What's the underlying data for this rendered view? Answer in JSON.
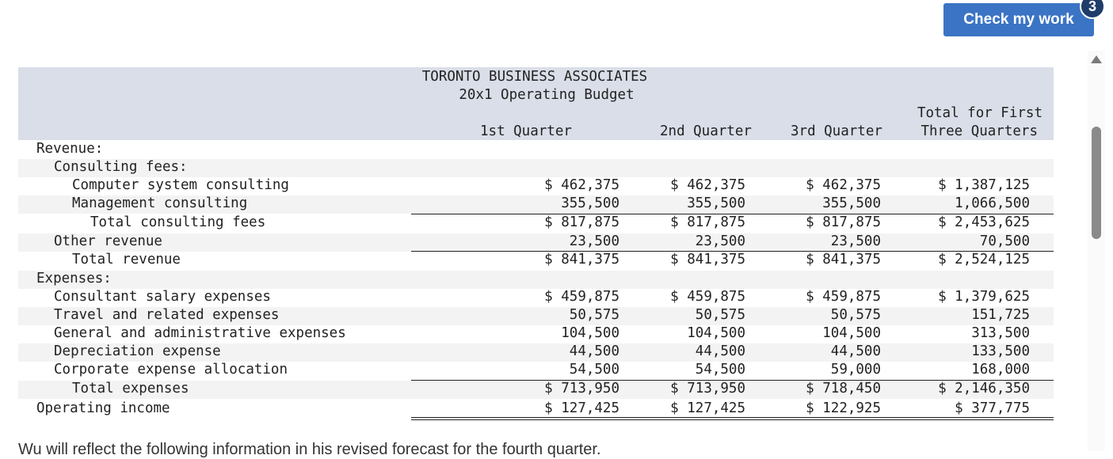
{
  "button": {
    "label": "Check my work",
    "badge": "3"
  },
  "budget": {
    "company": "TORONTO BUSINESS ASSOCIATES",
    "title": "20x1 Operating Budget",
    "columns": [
      "1st Quarter",
      "2nd Quarter",
      "3rd Quarter",
      "Total for First",
      "Three Quarters"
    ],
    "rows": [
      {
        "label": "Revenue:",
        "v": [
          "",
          "",
          "",
          ""
        ]
      },
      {
        "label": "Consulting fees:",
        "v": [
          "",
          "",
          "",
          ""
        ]
      },
      {
        "label": "Computer system consulting",
        "v": [
          "$ 462,375",
          "$ 462,375",
          "$ 462,375",
          "$ 1,387,125"
        ]
      },
      {
        "label": "Management consulting",
        "v": [
          "355,500",
          "355,500",
          "355,500",
          "1,066,500"
        ]
      },
      {
        "label": "Total consulting fees",
        "v": [
          "$ 817,875",
          "$ 817,875",
          "$ 817,875",
          "$ 2,453,625"
        ]
      },
      {
        "label": "Other revenue",
        "v": [
          "23,500",
          "23,500",
          "23,500",
          "70,500"
        ]
      },
      {
        "label": "Total revenue",
        "v": [
          "$ 841,375",
          "$ 841,375",
          "$ 841,375",
          "$ 2,524,125"
        ]
      },
      {
        "label": "Expenses:",
        "v": [
          "",
          "",
          "",
          ""
        ]
      },
      {
        "label": "Consultant salary expenses",
        "v": [
          "$ 459,875",
          "$ 459,875",
          "$ 459,875",
          "$ 1,379,625"
        ]
      },
      {
        "label": "Travel and related expenses",
        "v": [
          "50,575",
          "50,575",
          "50,575",
          "151,725"
        ]
      },
      {
        "label": "General and administrative expenses",
        "v": [
          "104,500",
          "104,500",
          "104,500",
          "313,500"
        ]
      },
      {
        "label": "Depreciation expense",
        "v": [
          "44,500",
          "44,500",
          "44,500",
          "133,500"
        ]
      },
      {
        "label": "Corporate expense allocation",
        "v": [
          "54,500",
          "54,500",
          "59,000",
          "168,000"
        ]
      },
      {
        "label": "Total expenses",
        "v": [
          "$ 713,950",
          "$ 713,950",
          "$ 718,450",
          "$ 2,146,350"
        ]
      },
      {
        "label": "Operating income",
        "v": [
          "$ 127,425",
          "$ 127,425",
          "$ 122,925",
          "$ 377,775"
        ]
      }
    ]
  },
  "footer_text": "Wu will reflect the following information in his revised forecast for the fourth quarter."
}
